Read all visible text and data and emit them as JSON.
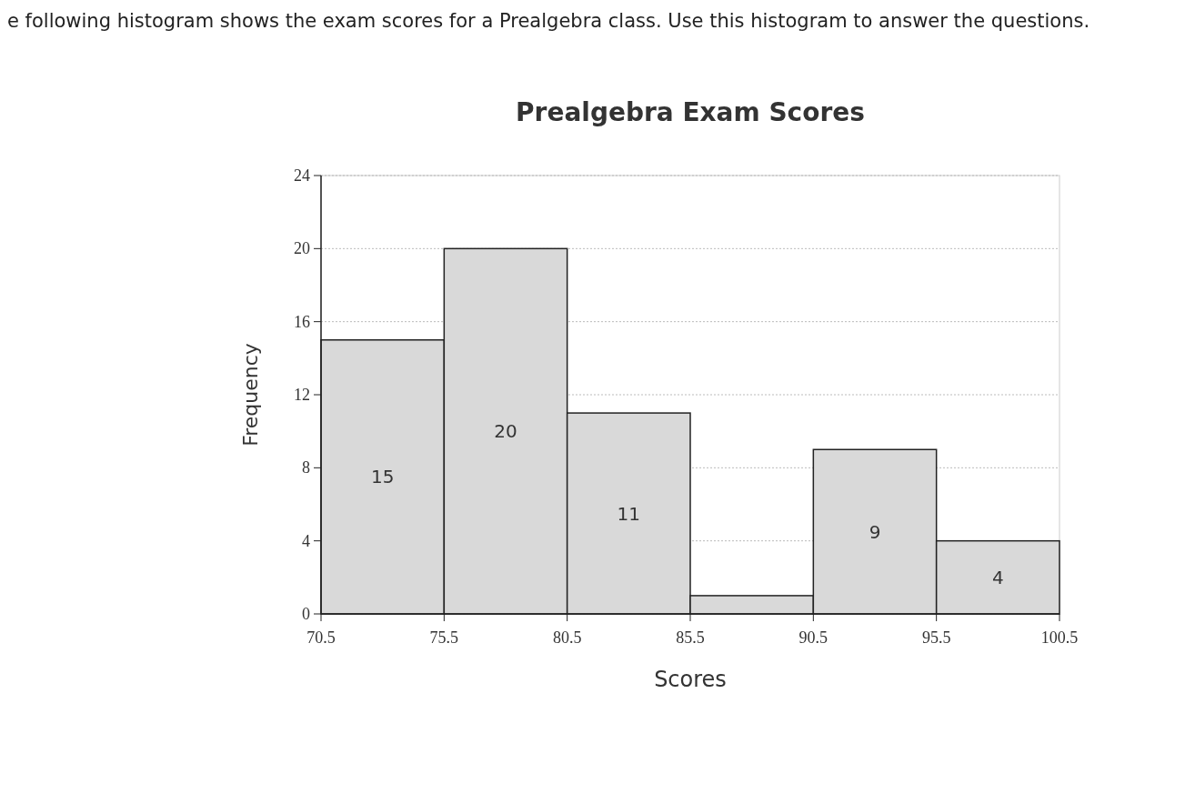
{
  "chart_data": {
    "type": "histogram",
    "title": "Prealgebra Exam Scores",
    "subtitle": "e following histogram shows the exam scores for a Prealgebra class. Use this histogram to answer the questions.",
    "xlabel": "Scores",
    "ylabel": "Frequency",
    "bins": [
      70.5,
      75.5,
      80.5,
      85.5,
      90.5,
      95.5,
      100.5
    ],
    "values": [
      15,
      20,
      11,
      1,
      9,
      4
    ],
    "value_labels": [
      "15",
      "20",
      "11",
      null,
      "9",
      "4"
    ],
    "color": "#d9d9d9",
    "xlim": [
      70.5,
      100.5
    ],
    "xticks": [
      70.5,
      75.5,
      80.5,
      85.5,
      90.5,
      95.5,
      100.5
    ],
    "ylim": [
      0,
      24
    ],
    "yticks": [
      0,
      4,
      8,
      12,
      16,
      20,
      24
    ],
    "grid": "y"
  }
}
